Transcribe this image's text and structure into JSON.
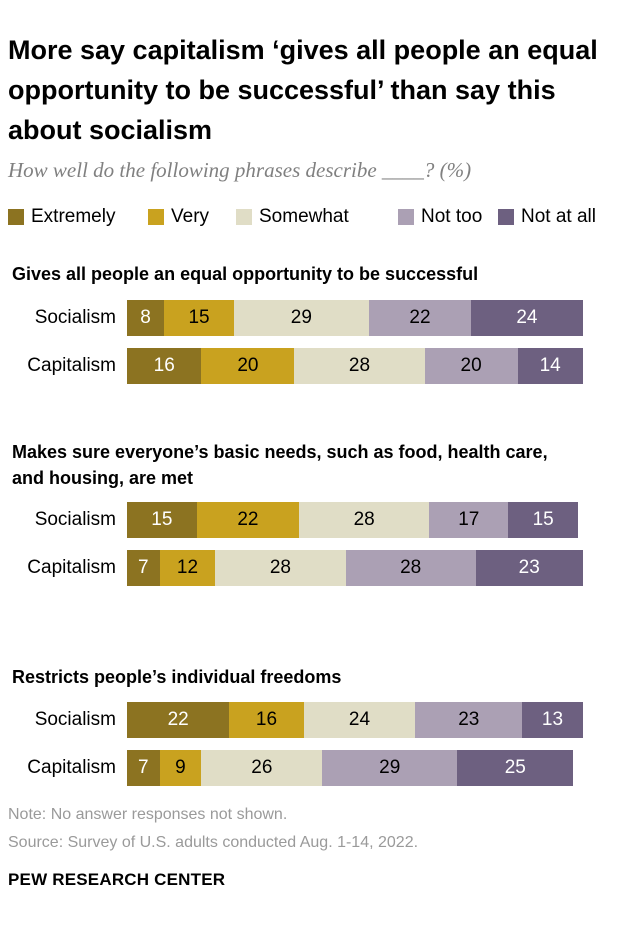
{
  "title": "More say capitalism ‘gives all people an equal opportunity to be successful’ than say this about socialism",
  "subtitle": "How well do the following phrases describe ____? (%)",
  "legend": [
    {
      "label": "Extremely",
      "color": "#8c7321"
    },
    {
      "label": "Very",
      "color": "#c9a21f"
    },
    {
      "label": "Somewhat",
      "color": "#e0ddc6"
    },
    {
      "label": "Not too",
      "color": "#aba0b4"
    },
    {
      "label": "Not at all",
      "color": "#6d6080"
    }
  ],
  "footer": {
    "note": "Note: No answer responses not shown.",
    "source": "Source: Survey of U.S. adults conducted Aug. 1-14, 2022.",
    "brand": "PEW RESEARCH CENTER"
  },
  "chart_data": {
    "type": "bar",
    "orientation": "horizontal",
    "stacked": true,
    "unit": "%",
    "series_names": [
      "Extremely",
      "Very",
      "Somewhat",
      "Not too",
      "Not at all"
    ],
    "colors": [
      "#8c7321",
      "#c9a21f",
      "#e0ddc6",
      "#aba0b4",
      "#6d6080"
    ],
    "groups": [
      {
        "question": "Gives all people an equal opportunity to be successful",
        "rows": [
          {
            "label": "Socialism",
            "values": [
              8,
              15,
              29,
              22,
              24
            ]
          },
          {
            "label": "Capitalism",
            "values": [
              16,
              20,
              28,
              20,
              14
            ]
          }
        ]
      },
      {
        "question": "Makes sure everyone’s basic needs, such as food, health care, and housing, are met",
        "rows": [
          {
            "label": "Socialism",
            "values": [
              15,
              22,
              28,
              17,
              15
            ]
          },
          {
            "label": "Capitalism",
            "values": [
              7,
              12,
              28,
              28,
              23
            ]
          }
        ]
      },
      {
        "question": "Restricts people’s individual freedoms",
        "rows": [
          {
            "label": "Socialism",
            "values": [
              22,
              16,
              24,
              23,
              13
            ]
          },
          {
            "label": "Capitalism",
            "values": [
              7,
              9,
              26,
              29,
              25
            ]
          }
        ]
      }
    ]
  }
}
